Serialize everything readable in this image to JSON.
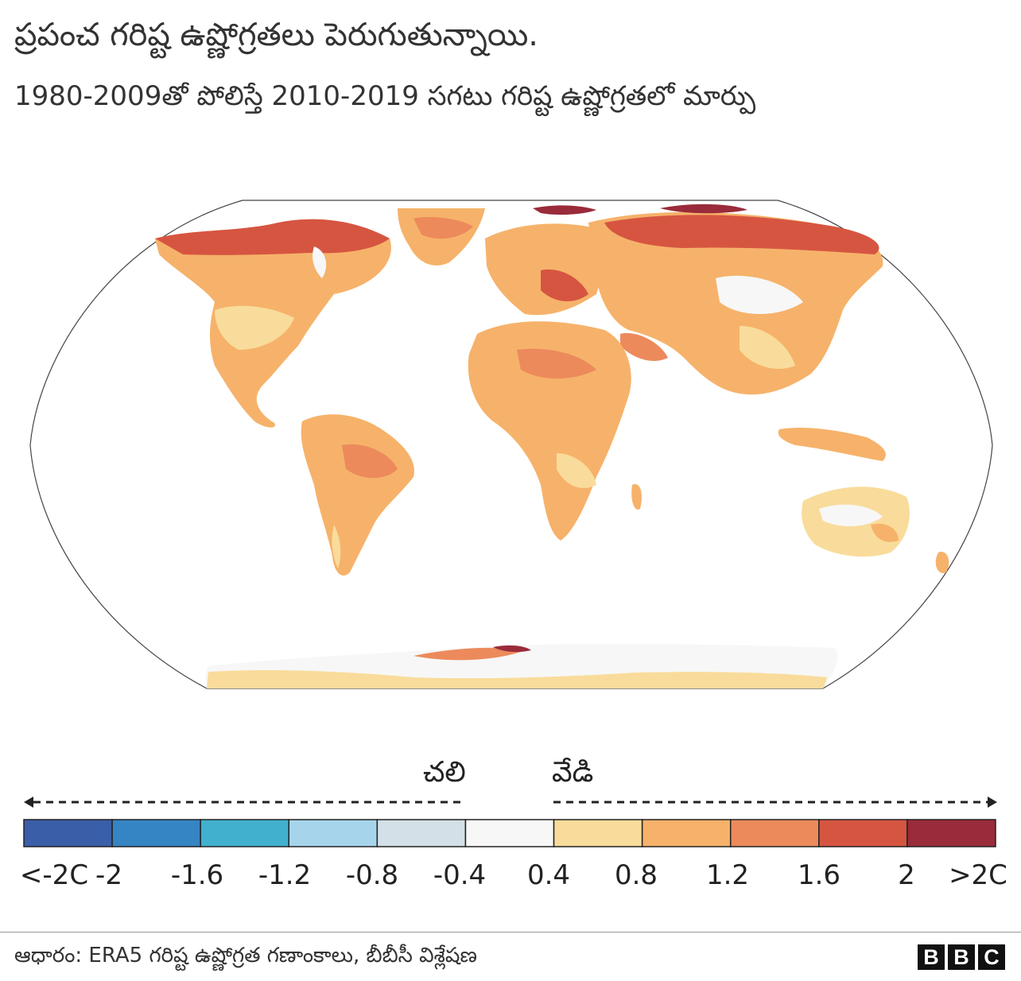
{
  "title": "ప్రపంచ గరిష్ట ఉష్ణోగ్రతలు పెరుగుతున్నాయి.",
  "subtitle": "1980-2009తో పోలిస్తే 2010-2019 సగటు గరిష్ట ఉష్ణోగ్రతలో మార్పు",
  "legend": {
    "cold_label": "చలి",
    "warm_label": "వేడి",
    "ticks": [
      "<-2C",
      "-2",
      "-1.6",
      "-1.2",
      "-0.8",
      "-0.4",
      "0.4",
      "0.8",
      "1.2",
      "1.6",
      "2",
      ">2C"
    ],
    "colors": [
      "#3a5fa8",
      "#3584c3",
      "#41b0cf",
      "#a6d5eb",
      "#d3e0e7",
      "#f7f7f7",
      "#f9dc9b",
      "#f6b26a",
      "#ec8a5c",
      "#d65541",
      "#9a2b3a"
    ]
  },
  "source": "ఆధారం: ERA5 గరిష్ట ఉష్ణోగ్రత గణాంకాలు, బీబీసీ విశ్లేషణ",
  "logo": "BBC"
}
